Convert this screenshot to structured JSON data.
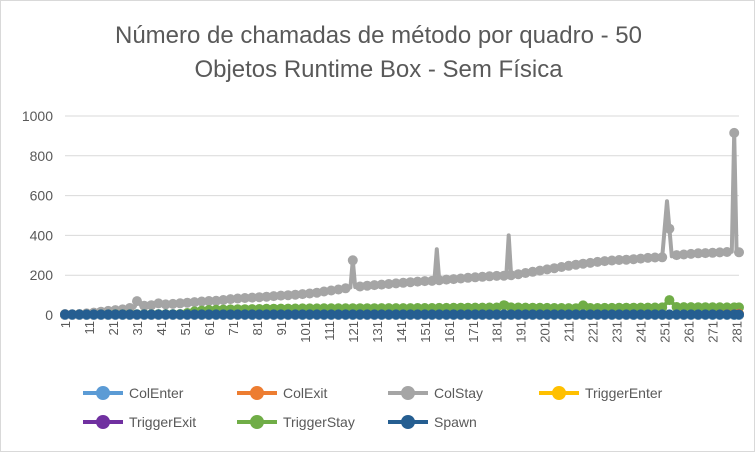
{
  "chart_data": {
    "type": "line",
    "title_line1": "Número de chamadas de método por quadro - 50",
    "title_line2": "Objetos Runtime Box - Sem Física",
    "xlabel": "",
    "ylabel": "",
    "ylim": [
      0,
      1000
    ],
    "yticks": [
      "0",
      "200",
      "400",
      "600",
      "800",
      "1000"
    ],
    "xlim": [
      1,
      282
    ],
    "xticks": [
      "1",
      "11",
      "21",
      "31",
      "41",
      "51",
      "61",
      "71",
      "81",
      "91",
      "101",
      "111",
      "121",
      "131",
      "141",
      "151",
      "161",
      "171",
      "181",
      "191",
      "201",
      "211",
      "221",
      "231",
      "241",
      "251",
      "261",
      "271",
      "281"
    ],
    "grid": true,
    "legend_position": "bottom",
    "series": [
      {
        "name": "ColEnter",
        "color": "#5b9bd5",
        "points": [
          [
            1,
            0
          ],
          [
            282,
            0
          ]
        ]
      },
      {
        "name": "ColExit",
        "color": "#ed7d31",
        "points": [
          [
            1,
            0
          ],
          [
            265,
            0
          ],
          [
            270,
            2
          ],
          [
            275,
            3
          ],
          [
            280,
            4
          ],
          [
            282,
            6
          ]
        ]
      },
      {
        "name": "ColStay",
        "color": "#a5a5a5",
        "points": [
          [
            1,
            5
          ],
          [
            5,
            3
          ],
          [
            10,
            8
          ],
          [
            15,
            15
          ],
          [
            20,
            22
          ],
          [
            25,
            28
          ],
          [
            30,
            40
          ],
          [
            31,
            70
          ],
          [
            33,
            45
          ],
          [
            38,
            50
          ],
          [
            39,
            65
          ],
          [
            41,
            52
          ],
          [
            45,
            55
          ],
          [
            50,
            60
          ],
          [
            55,
            65
          ],
          [
            60,
            70
          ],
          [
            65,
            72
          ],
          [
            70,
            80
          ],
          [
            75,
            85
          ],
          [
            80,
            88
          ],
          [
            85,
            92
          ],
          [
            90,
            97
          ],
          [
            95,
            100
          ],
          [
            100,
            105
          ],
          [
            105,
            110
          ],
          [
            110,
            120
          ],
          [
            115,
            128
          ],
          [
            120,
            138
          ],
          [
            121,
            275
          ],
          [
            122,
            140
          ],
          [
            125,
            145
          ],
          [
            130,
            150
          ],
          [
            135,
            155
          ],
          [
            140,
            160
          ],
          [
            145,
            165
          ],
          [
            150,
            170
          ],
          [
            155,
            172
          ],
          [
            156,
            330
          ],
          [
            157,
            175
          ],
          [
            160,
            178
          ],
          [
            165,
            182
          ],
          [
            170,
            188
          ],
          [
            175,
            192
          ],
          [
            180,
            196
          ],
          [
            185,
            198
          ],
          [
            186,
            400
          ],
          [
            187,
            200
          ],
          [
            190,
            205
          ],
          [
            195,
            215
          ],
          [
            200,
            225
          ],
          [
            205,
            235
          ],
          [
            210,
            245
          ],
          [
            215,
            255
          ],
          [
            220,
            262
          ],
          [
            225,
            270
          ],
          [
            230,
            275
          ],
          [
            235,
            278
          ],
          [
            240,
            282
          ],
          [
            245,
            288
          ],
          [
            250,
            290
          ],
          [
            252,
            572
          ],
          [
            254,
            295
          ],
          [
            255,
            300
          ],
          [
            260,
            305
          ],
          [
            265,
            310
          ],
          [
            270,
            312
          ],
          [
            275,
            315
          ],
          [
            279,
            318
          ],
          [
            280,
            915
          ],
          [
            281,
            310
          ],
          [
            282,
            315
          ]
        ]
      },
      {
        "name": "TriggerEnter",
        "color": "#ffc000",
        "points": [
          [
            1,
            0
          ],
          [
            282,
            0
          ]
        ]
      },
      {
        "name": "TriggerExit",
        "color": "#7030a0",
        "points": [
          [
            1,
            0
          ],
          [
            282,
            0
          ]
        ]
      },
      {
        "name": "TriggerStay",
        "color": "#70ad47",
        "points": [
          [
            1,
            2
          ],
          [
            50,
            5
          ],
          [
            55,
            18
          ],
          [
            60,
            25
          ],
          [
            70,
            28
          ],
          [
            80,
            30
          ],
          [
            90,
            32
          ],
          [
            100,
            33
          ],
          [
            120,
            34
          ],
          [
            150,
            35
          ],
          [
            183,
            38
          ],
          [
            185,
            60
          ],
          [
            187,
            38
          ],
          [
            200,
            36
          ],
          [
            215,
            34
          ],
          [
            218,
            55
          ],
          [
            220,
            35
          ],
          [
            250,
            38
          ],
          [
            253,
            75
          ],
          [
            256,
            40
          ],
          [
            282,
            38
          ]
        ]
      },
      {
        "name": "Spawn",
        "color": "#255e91",
        "points": [
          [
            1,
            3
          ],
          [
            282,
            3
          ]
        ]
      }
    ]
  }
}
